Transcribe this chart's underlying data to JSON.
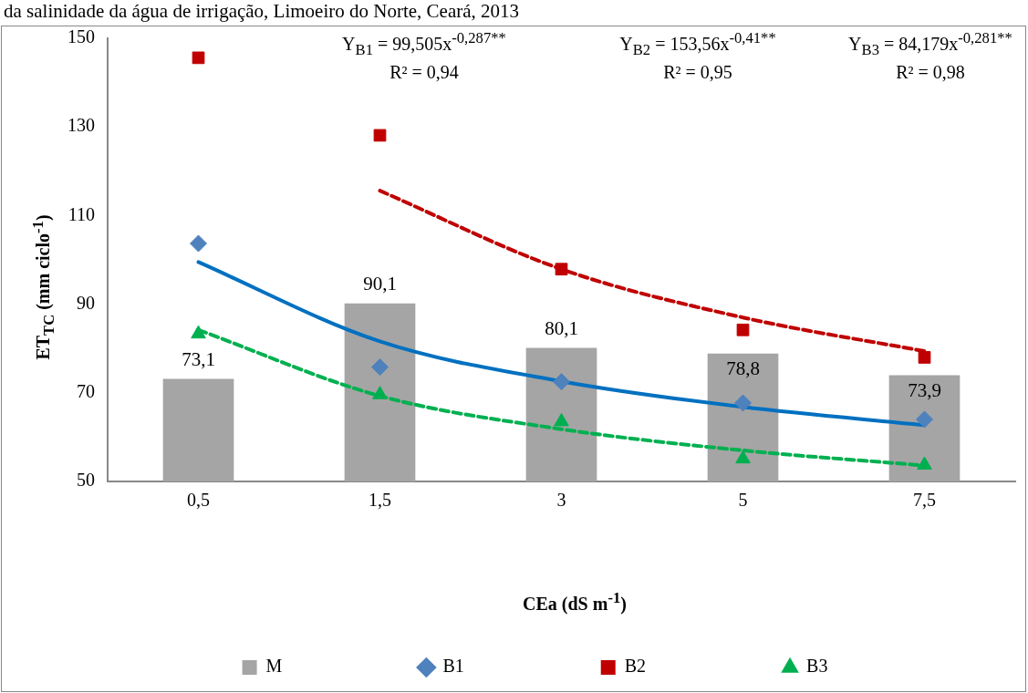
{
  "chart_data": {
    "type": "bar",
    "title": "da salinidade da água de irrigação, Limoeiro do Norte, Ceará, 2013",
    "xlabel": "CEa (dS m$^{-1}$)",
    "ylabel": "ET$_{TC}$ (mm ciclo$^{-1}$)",
    "annotations": [
      "Y$_{B1}$ = 99,505x$^{-0,287**}$\nR² = 0,94",
      "Y$_{B2}$ = 153,56x$^{-0,41**}$\nR² = 0,95",
      "Y$_{B3}$ = 84,179x$^{-0,281**}$\nR² = 0,98"
    ],
    "categories": [
      "0,5",
      "1,5",
      "3",
      "5",
      "7,5"
    ],
    "ylim": [
      50,
      150
    ],
    "yticks": [
      50,
      70,
      90,
      110,
      130,
      150
    ],
    "legend": "bottom",
    "series": [
      {
        "name": "M",
        "color": "#a5a5a5",
        "values": [
          73.1,
          90.1,
          80.1,
          78.8,
          73.9
        ],
        "value_labels": [
          "73,1",
          "90,1",
          "80,1",
          "78,8",
          "73,9"
        ]
      },
      {
        "name": "B1",
        "type": "scatter",
        "marker": "diamond",
        "color": "#4f81bd",
        "values": [
          103.7,
          75.8,
          72.5,
          67.7,
          64.0
        ]
      },
      {
        "name": "B2",
        "type": "scatter",
        "marker": "square",
        "color": "#c00000",
        "values": [
          145.6,
          128.1,
          97.9,
          84.2,
          78.0
        ]
      },
      {
        "name": "B3",
        "type": "scatter",
        "marker": "triangle",
        "color": "#00b050",
        "values": [
          83.3,
          69.6,
          63.5,
          55.1,
          53.7
        ]
      },
      {
        "type": "line",
        "line_style": "solid",
        "color": "#0070c0",
        "values": [
          99.5,
          81.6,
          72.6,
          66.8,
          62.7
        ]
      },
      {
        "type": "line",
        "line_style": "dashed",
        "color": "#c00000",
        "values": [
          null,
          115.6,
          97.9,
          87.0,
          79.4
        ]
      },
      {
        "type": "line",
        "line_style": "dashed",
        "color": "#00b050",
        "values": [
          84.2,
          69.3,
          61.8,
          57.0,
          53.6
        ]
      }
    ]
  }
}
